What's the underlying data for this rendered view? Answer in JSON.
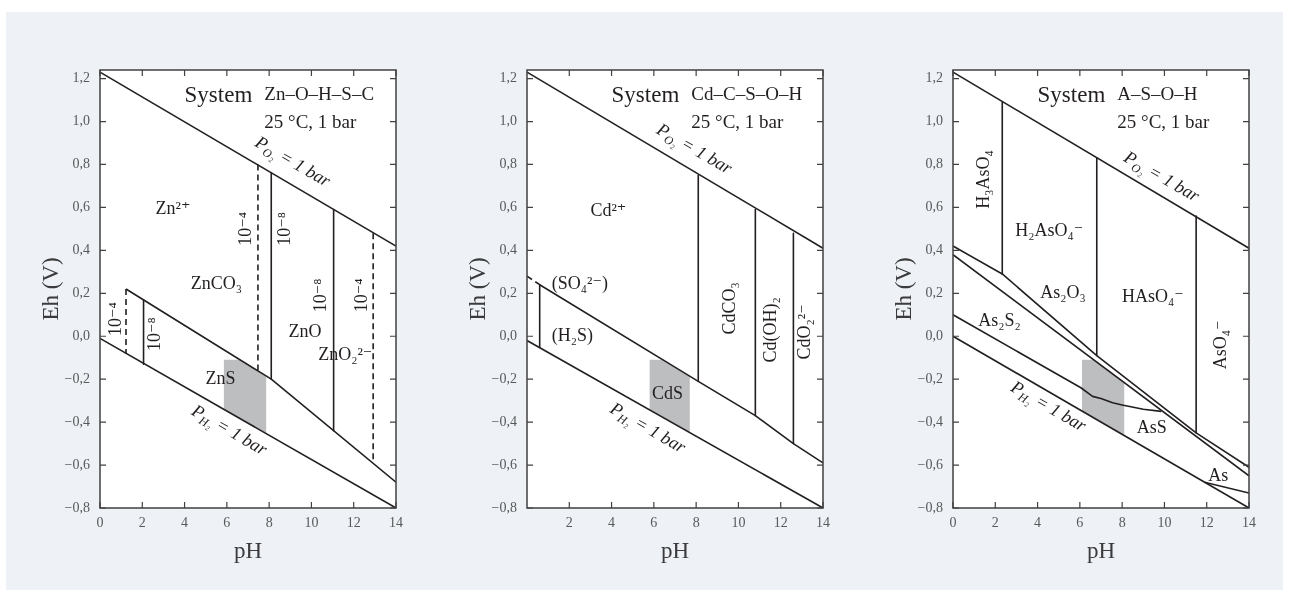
{
  "chart_data": [
    {
      "type": "line",
      "title": "System",
      "subtitle": "Zn–O–H–S–C",
      "xlabel": "pH",
      "ylabel": "Eh (V)",
      "xlim": [
        0,
        14
      ],
      "ylim": [
        -0.8,
        1.24
      ],
      "xticks": [
        0,
        2,
        4,
        6,
        8,
        10,
        12,
        14
      ],
      "yticks": [
        {
          "value": -0.8,
          "label": "−0,8"
        },
        {
          "value": -0.6,
          "label": "−0,6"
        },
        {
          "value": -0.4,
          "label": "−0,4"
        },
        {
          "value": -0.2,
          "label": "−0,2"
        },
        {
          "value": 0,
          "label": "0,0"
        },
        {
          "value": 0.2,
          "label": "0,2"
        },
        {
          "value": 0.4,
          "label": "0,4"
        },
        {
          "value": 0.6,
          "label": "0,6"
        },
        {
          "value": 0.8,
          "label": "0,8"
        },
        {
          "value": 1.0,
          "label": "1,0"
        },
        {
          "value": 1.2,
          "label": "1,2"
        }
      ],
      "series": [
        {
          "color": "#bcbec0",
          "x": [
            5.86,
            6.55,
            7.86
          ],
          "values": [
            null,
            null,
            null
          ],
          "lower": [
            -0.34,
            -0.38,
            -0.45
          ],
          "upper": [
            -0.11,
            -0.11,
            -0.19
          ]
        },
        {
          "color": "#231f20",
          "x": [
            0,
            14
          ],
          "values": [
            1.23,
            0.42
          ]
        },
        {
          "color": "#231f20",
          "x": [
            0,
            14
          ],
          "values": [
            -0.01,
            -0.8
          ]
        },
        {
          "color": "#231f20",
          "x": [
            1.23,
            8.1,
            14
          ],
          "values": [
            0.22,
            -0.2,
            -0.68
          ]
        },
        {
          "color": "#231f20",
          "line_style": "dashed",
          "x": [
            1.23,
            1.23
          ],
          "values": [
            0.22,
            -0.08
          ]
        },
        {
          "color": "#231f20",
          "x": [
            2.06,
            2.06
          ],
          "values": [
            0.17,
            -0.13
          ]
        },
        {
          "color": "#231f20",
          "line_style": "dashed",
          "x": [
            7.47,
            7.47
          ],
          "values": [
            0.8,
            -0.16
          ]
        },
        {
          "color": "#231f20",
          "x": [
            8.1,
            8.1
          ],
          "values": [
            0.76,
            -0.2
          ]
        },
        {
          "color": "#231f20",
          "x": [
            11.05,
            11.05
          ],
          "values": [
            0.59,
            -0.44
          ]
        },
        {
          "color": "#231f20",
          "line_style": "dashed",
          "x": [
            12.92,
            12.92
          ],
          "values": [
            0.48,
            -0.59
          ]
        }
      ],
      "annotations": [
        "25 °C, 1 bar",
        "P$_{O₂}$ = 1 bar",
        "Zn²⁺",
        "10⁻⁴",
        "10⁻⁸",
        "ZnCO₃",
        "10⁻⁸",
        "10⁻⁴",
        "10⁻⁴",
        "10⁻⁸",
        "ZnO",
        "ZnO₂²⁻",
        "ZnS",
        "P$_{H₂}$ = 1 bar"
      ]
    },
    {
      "type": "line",
      "title": "System",
      "subtitle": "Cd–C–S–O–H",
      "xlabel": "pH",
      "ylabel": "Eh (V)",
      "xlim": [
        0,
        14
      ],
      "ylim": [
        -0.8,
        1.24
      ],
      "xticks": [
        2,
        4,
        6,
        8,
        10,
        12,
        14
      ],
      "yticks": [
        {
          "value": -0.8,
          "label": "−0,8"
        },
        {
          "value": -0.6,
          "label": "−0,6"
        },
        {
          "value": -0.4,
          "label": "−0,4"
        },
        {
          "value": -0.2,
          "label": "−0,2"
        },
        {
          "value": 0,
          "label": "0,0"
        },
        {
          "value": 0.2,
          "label": "0,2"
        },
        {
          "value": 0.4,
          "label": "0,4"
        },
        {
          "value": 0.6,
          "label": "0,6"
        },
        {
          "value": 0.8,
          "label": "0,8"
        },
        {
          "value": 1.0,
          "label": "1,0"
        },
        {
          "value": 1.2,
          "label": "1,2"
        }
      ],
      "series": [
        {
          "color": "#bcbec0",
          "x": [
            5.8,
            6.35,
            7.7
          ],
          "values": [
            null,
            null,
            null
          ],
          "lower": [
            -0.34,
            -0.37,
            -0.45
          ],
          "upper": [
            -0.11,
            -0.11,
            -0.19
          ]
        },
        {
          "color": "#231f20",
          "x": [
            0,
            14
          ],
          "values": [
            1.23,
            0.41
          ]
        },
        {
          "color": "#231f20",
          "x": [
            0,
            14
          ],
          "values": [
            -0.02,
            -0.8
          ]
        },
        {
          "color": "#231f20",
          "line_style": "dashed",
          "x": [
            0,
            0.6
          ],
          "values": [
            0.28,
            0.24
          ]
        },
        {
          "color": "#231f20",
          "x": [
            0.6,
            8.1,
            10.8,
            12.6,
            14
          ],
          "values": [
            0.24,
            -0.21,
            -0.37,
            -0.5,
            -0.59
          ]
        },
        {
          "color": "#231f20",
          "x": [
            0.6,
            0.6
          ],
          "values": [
            0.24,
            -0.05
          ]
        },
        {
          "color": "#231f20",
          "x": [
            8.1,
            8.1
          ],
          "values": [
            0.75,
            -0.21
          ]
        },
        {
          "color": "#231f20",
          "x": [
            10.8,
            10.8
          ],
          "values": [
            0.59,
            -0.37
          ]
        },
        {
          "color": "#231f20",
          "x": [
            12.6,
            12.6
          ],
          "values": [
            0.48,
            -0.5
          ]
        }
      ],
      "annotations": [
        "25 °C, 1 bar",
        "P$_{O₂}$ = 1 bar",
        "Cd²⁺",
        "(SO₄²⁻)",
        "(H₂S)",
        "CdCO₃",
        "Cd(OH)₂",
        "CdO₂²⁻",
        "CdS",
        "P$_{H₂}$ = 1 bar"
      ]
    },
    {
      "type": "line",
      "title": "System",
      "subtitle": "A–S–O–H",
      "xlabel": "pH",
      "ylabel": "Eh (V)",
      "xlim": [
        0,
        14
      ],
      "ylim": [
        -0.8,
        1.24
      ],
      "xticks": [
        0,
        2,
        4,
        6,
        8,
        10,
        12,
        14
      ],
      "yticks": [
        {
          "value": -0.8,
          "label": "−0,8"
        },
        {
          "value": -0.6,
          "label": "−0,6"
        },
        {
          "value": -0.4,
          "label": "−0,4"
        },
        {
          "value": -0.2,
          "label": "−0,2"
        },
        {
          "value": 0,
          "label": "0,0"
        },
        {
          "value": 0.2,
          "label": "0,2"
        },
        {
          "value": 0.4,
          "label": "0,4"
        },
        {
          "value": 0.6,
          "label": "0,6"
        },
        {
          "value": 0.8,
          "label": "0,8"
        },
        {
          "value": 1.0,
          "label": "1,0"
        },
        {
          "value": 1.2,
          "label": "1,2"
        }
      ],
      "series": [
        {
          "color": "#bcbec0",
          "x": [
            6.1,
            6.65,
            8.1
          ],
          "values": [
            null,
            null,
            null
          ],
          "lower": [
            -0.35,
            -0.38,
            -0.46
          ],
          "upper": [
            -0.11,
            -0.11,
            -0.22
          ]
        },
        {
          "color": "#231f20",
          "x": [
            0,
            14
          ],
          "values": [
            1.23,
            0.41
          ]
        },
        {
          "color": "#231f20",
          "x": [
            0,
            14
          ],
          "values": [
            0,
            -0.8
          ]
        },
        {
          "color": "#231f20",
          "x": [
            2.33,
            2.33
          ],
          "values": [
            1.09,
            0.29
          ]
        },
        {
          "color": "#231f20",
          "x": [
            0,
            2.33,
            6.8,
            11.5,
            14
          ],
          "values": [
            0.42,
            0.29,
            -0.09,
            -0.45,
            -0.61
          ]
        },
        {
          "color": "#231f20",
          "x": [
            0,
            14
          ],
          "values": [
            0.38,
            -0.65
          ]
        },
        {
          "color": "#231f20",
          "x": [
            0,
            6.05,
            6.6,
            7,
            7.55,
            8,
            9,
            9.85
          ],
          "values": [
            0.1,
            -0.24,
            -0.28,
            -0.29,
            -0.31,
            -0.32,
            -0.34,
            -0.35
          ]
        },
        {
          "color": "#231f20",
          "x": [
            6.8,
            6.8
          ],
          "values": [
            0.83,
            -0.09
          ]
        },
        {
          "color": "#231f20",
          "x": [
            11.5,
            11.5
          ],
          "values": [
            0.56,
            -0.45
          ]
        },
        {
          "color": "#231f20",
          "x": [
            11.9,
            14
          ],
          "values": [
            -0.68,
            -0.73
          ]
        }
      ],
      "annotations": [
        "25 °C, 1 bar",
        "P$_{O₂}$ = 1 bar",
        "H₃AsO₄",
        "H₂AsO₄⁻",
        "As₂O₃",
        "HAsO₄⁻",
        "As₂S₂",
        "AsO₄⁻",
        "P$_{H₂}$ = 1 bar",
        "AsS",
        "As"
      ]
    }
  ]
}
